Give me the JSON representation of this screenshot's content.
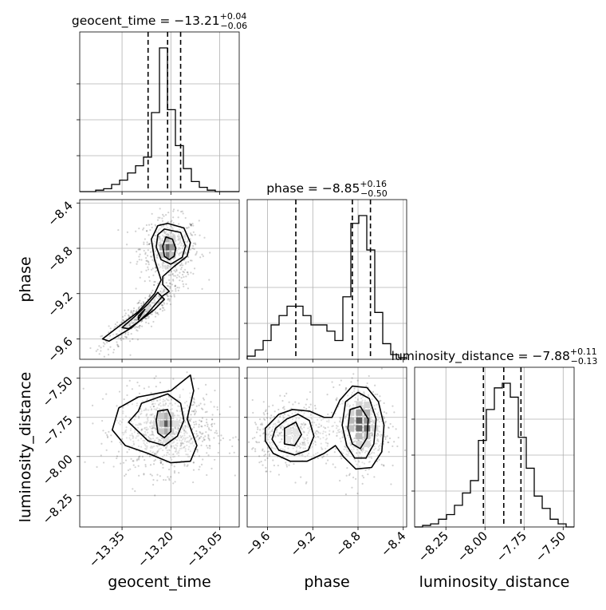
{
  "chart_data": {
    "type": "corner",
    "parameters": [
      "geocent_time",
      "phase",
      "luminosity_distance"
    ],
    "axis_labels": [
      "geocent_time",
      "phase",
      "luminosity_distance"
    ],
    "titles": [
      {
        "param": "geocent_time",
        "prefix": "geocent_time = −13.21",
        "plus": "+0.04",
        "minus": "−0.06"
      },
      {
        "param": "phase",
        "prefix": "phase = −8.85",
        "plus": "+0.16",
        "minus": "−0.50"
      },
      {
        "param": "luminosity_distance",
        "prefix": "luminosity_distance = −7.88",
        "plus": "+0.11",
        "minus": "−0.13"
      }
    ],
    "ranges": {
      "geocent_time": [
        -13.48,
        -12.99
      ],
      "phase": [
        -9.78,
        -8.37
      ],
      "luminosity_distance": [
        -8.45,
        -7.43
      ]
    },
    "ticks": {
      "geocent_time": {
        "values": [
          -13.35,
          -13.2,
          -13.05
        ],
        "labels": [
          "−13.35",
          "−13.20",
          "−13.05"
        ]
      },
      "phase": {
        "values": [
          -9.6,
          -9.2,
          -8.8,
          -8.4
        ],
        "labels": [
          "−9.6",
          "−9.2",
          "−8.8",
          "−8.4"
        ]
      },
      "luminosity_distance": {
        "values": [
          -8.25,
          -8.0,
          -7.75,
          -7.5
        ],
        "labels": [
          "−8.25",
          "−8.00",
          "−7.75",
          "−7.50"
        ]
      }
    },
    "quantiles": {
      "geocent_time": [
        -13.27,
        -13.21,
        -13.17
      ],
      "phase": [
        -9.35,
        -8.85,
        -8.69
      ],
      "luminosity_distance": [
        -8.01,
        -7.88,
        -7.77
      ]
    },
    "histograms": {
      "geocent_time": {
        "edges": [
          -13.48,
          -13.4555,
          -13.431,
          -13.4065,
          -13.382,
          -13.3575,
          -13.333,
          -13.3085,
          -13.284,
          -13.2595,
          -13.235,
          -13.2105,
          -13.186,
          -13.1615,
          -13.137,
          -13.1125,
          -13.088,
          -13.0635,
          -13.039,
          -13.0145,
          -12.99
        ],
        "counts": [
          0,
          0,
          1,
          2,
          5,
          8,
          13,
          18,
          24,
          55,
          100,
          57,
          32,
          16,
          7,
          3,
          1,
          0,
          0,
          0
        ]
      },
      "phase": {
        "edges": [
          -9.78,
          -9.7095,
          -9.639,
          -9.5685,
          -9.498,
          -9.4275,
          -9.357,
          -9.2865,
          -9.216,
          -9.1455,
          -9.075,
          -9.0045,
          -8.934,
          -8.8635,
          -8.793,
          -8.7225,
          -8.652,
          -8.5815,
          -8.511,
          -8.4405,
          -8.37
        ],
        "counts": [
          2,
          6,
          12,
          22,
          28,
          34,
          34,
          28,
          22,
          22,
          18,
          12,
          40,
          87,
          92,
          70,
          30,
          10,
          3,
          1
        ]
      },
      "luminosity_distance": {
        "edges": [
          -8.45,
          -8.399,
          -8.348,
          -8.297,
          -8.246,
          -8.195,
          -8.144,
          -8.093,
          -8.042,
          -7.991,
          -7.94,
          -7.889,
          -7.838,
          -7.787,
          -7.736,
          -7.685,
          -7.634,
          -7.583,
          -7.532,
          -7.481,
          -7.43
        ],
        "counts": [
          0,
          1,
          2,
          5,
          8,
          14,
          22,
          30,
          56,
          76,
          90,
          93,
          84,
          58,
          38,
          20,
          12,
          5,
          2,
          0
        ]
      }
    },
    "contours": {
      "phase_vs_geocent_time": {
        "inner": [
          [
            [
              -13.215,
              -8.7
            ],
            [
              -13.195,
              -8.72
            ],
            [
              -13.185,
              -8.8
            ],
            [
              -13.19,
              -8.87
            ],
            [
              -13.205,
              -8.9
            ],
            [
              -13.22,
              -8.87
            ],
            [
              -13.225,
              -8.78
            ]
          ],
          [
            [
              -13.3,
              -9.4
            ],
            [
              -13.28,
              -9.34
            ],
            [
              -13.29,
              -9.38
            ],
            [
              -13.3,
              -9.43
            ]
          ]
        ],
        "middle": [
          [
            [
              -13.22,
              -8.63
            ],
            [
              -13.17,
              -8.66
            ],
            [
              -13.155,
              -8.78
            ],
            [
              -13.165,
              -8.88
            ],
            [
              -13.2,
              -8.94
            ],
            [
              -13.23,
              -8.9
            ],
            [
              -13.245,
              -8.79
            ],
            [
              -13.24,
              -8.68
            ]
          ],
          [
            [
              -13.24,
              -9.19
            ],
            [
              -13.27,
              -9.29
            ],
            [
              -13.31,
              -9.4
            ],
            [
              -13.35,
              -9.5
            ],
            [
              -13.33,
              -9.51
            ],
            [
              -13.3,
              -9.45
            ],
            [
              -13.25,
              -9.34
            ],
            [
              -13.22,
              -9.25
            ]
          ]
        ],
        "outer": [
          [
            [
              -13.24,
              -8.6
            ],
            [
              -13.21,
              -8.58
            ],
            [
              -13.16,
              -8.62
            ],
            [
              -13.14,
              -8.75
            ],
            [
              -13.15,
              -8.87
            ],
            [
              -13.19,
              -8.96
            ],
            [
              -13.225,
              -9.05
            ],
            [
              -13.225,
              -9.12
            ],
            [
              -13.205,
              -9.18
            ],
            [
              -13.225,
              -9.22
            ],
            [
              -13.27,
              -9.37
            ],
            [
              -13.32,
              -9.5
            ],
            [
              -13.39,
              -9.62
            ],
            [
              -13.41,
              -9.6
            ],
            [
              -13.36,
              -9.49
            ],
            [
              -13.3,
              -9.36
            ],
            [
              -13.25,
              -9.2
            ],
            [
              -13.23,
              -9.08
            ],
            [
              -13.25,
              -8.9
            ],
            [
              -13.26,
              -8.72
            ]
          ]
        ]
      },
      "luminosity_distance_vs_geocent_time": {
        "inner": [
          [
            [
              -13.24,
              -7.71
            ],
            [
              -13.21,
              -7.7
            ],
            [
              -13.2,
              -7.75
            ],
            [
              -13.2,
              -7.84
            ],
            [
              -13.22,
              -7.88
            ],
            [
              -13.24,
              -7.85
            ],
            [
              -13.245,
              -7.77
            ]
          ]
        ],
        "middle": [
          [
            [
              -13.29,
              -7.66
            ],
            [
              -13.21,
              -7.6
            ],
            [
              -13.17,
              -7.66
            ],
            [
              -13.16,
              -7.77
            ],
            [
              -13.18,
              -7.87
            ],
            [
              -13.22,
              -7.93
            ],
            [
              -13.27,
              -7.9
            ],
            [
              -13.3,
              -7.84
            ],
            [
              -13.33,
              -7.78
            ],
            [
              -13.3,
              -7.71
            ]
          ]
        ],
        "outer": [
          [
            [
              -13.36,
              -7.69
            ],
            [
              -13.3,
              -7.62
            ],
            [
              -13.2,
              -7.58
            ],
            [
              -13.14,
              -7.48
            ],
            [
              -13.13,
              -7.58
            ],
            [
              -13.15,
              -7.76
            ],
            [
              -13.12,
              -7.93
            ],
            [
              -13.14,
              -8.03
            ],
            [
              -13.2,
              -8.04
            ],
            [
              -13.27,
              -7.98
            ],
            [
              -13.34,
              -7.93
            ],
            [
              -13.38,
              -7.83
            ]
          ]
        ]
      },
      "luminosity_distance_vs_phase": {
        "inner": [
          [
            [
              -9.45,
              -7.82
            ],
            [
              -9.35,
              -7.78
            ],
            [
              -9.3,
              -7.86
            ],
            [
              -9.36,
              -7.93
            ],
            [
              -9.45,
              -7.92
            ]
          ],
          [
            [
              -8.87,
              -7.7
            ],
            [
              -8.78,
              -7.68
            ],
            [
              -8.71,
              -7.76
            ],
            [
              -8.72,
              -7.88
            ],
            [
              -8.78,
              -7.95
            ],
            [
              -8.85,
              -7.92
            ],
            [
              -8.89,
              -7.82
            ]
          ]
        ],
        "middle": [
          [
            [
              -9.53,
              -7.82
            ],
            [
              -9.43,
              -7.76
            ],
            [
              -9.33,
              -7.73
            ],
            [
              -9.23,
              -7.77
            ],
            [
              -9.19,
              -7.87
            ],
            [
              -9.24,
              -7.96
            ],
            [
              -9.36,
              -7.99
            ],
            [
              -9.5,
              -7.96
            ],
            [
              -9.56,
              -7.89
            ]
          ],
          [
            [
              -8.91,
              -7.65
            ],
            [
              -8.8,
              -7.59
            ],
            [
              -8.7,
              -7.63
            ],
            [
              -8.64,
              -7.76
            ],
            [
              -8.66,
              -7.92
            ],
            [
              -8.73,
              -8.01
            ],
            [
              -8.83,
              -8.01
            ],
            [
              -8.9,
              -7.93
            ],
            [
              -8.94,
              -7.8
            ]
          ]
        ],
        "outer": [
          [
            [
              -9.62,
              -7.82
            ],
            [
              -9.5,
              -7.73
            ],
            [
              -9.38,
              -7.7
            ],
            [
              -9.23,
              -7.71
            ],
            [
              -9.1,
              -7.75
            ],
            [
              -9.03,
              -7.75
            ],
            [
              -8.96,
              -7.64
            ],
            [
              -8.85,
              -7.55
            ],
            [
              -8.72,
              -7.56
            ],
            [
              -8.62,
              -7.65
            ],
            [
              -8.57,
              -7.8
            ],
            [
              -8.59,
              -7.97
            ],
            [
              -8.68,
              -8.07
            ],
            [
              -8.82,
              -8.08
            ],
            [
              -8.93,
              -8.0
            ],
            [
              -9.0,
              -7.93
            ],
            [
              -9.1,
              -7.98
            ],
            [
              -9.25,
              -8.03
            ],
            [
              -9.4,
              -8.03
            ],
            [
              -9.55,
              -7.98
            ],
            [
              -9.62,
              -7.9
            ]
          ]
        ]
      }
    },
    "density_cells": {
      "phase_vs_geocent_time": [
        {
          "x": -13.21,
          "y": -8.79,
          "level": 1.0
        },
        {
          "x": -13.21,
          "y": -8.86,
          "level": 0.75
        },
        {
          "x": -13.195,
          "y": -8.79,
          "level": 0.6
        },
        {
          "x": -13.225,
          "y": -8.79,
          "level": 0.5
        },
        {
          "x": -13.21,
          "y": -8.72,
          "level": 0.45
        },
        {
          "x": -13.195,
          "y": -8.86,
          "level": 0.35
        },
        {
          "x": -13.225,
          "y": -8.86,
          "level": 0.35
        },
        {
          "x": -13.195,
          "y": -8.72,
          "level": 0.25
        },
        {
          "x": -13.29,
          "y": -9.38,
          "level": 0.3
        },
        {
          "x": -13.275,
          "y": -9.32,
          "level": 0.2
        }
      ],
      "luminosity_distance_vs_geocent_time": [
        {
          "x": -13.215,
          "y": -7.79,
          "level": 1.0
        },
        {
          "x": -13.215,
          "y": -7.74,
          "level": 0.45
        },
        {
          "x": -13.215,
          "y": -7.84,
          "level": 0.5
        },
        {
          "x": -13.23,
          "y": -7.79,
          "level": 0.4
        },
        {
          "x": -13.2,
          "y": -7.79,
          "level": 0.35
        },
        {
          "x": -13.23,
          "y": -7.74,
          "level": 0.3
        },
        {
          "x": -13.23,
          "y": -7.84,
          "level": 0.3
        },
        {
          "x": -13.2,
          "y": -7.74,
          "level": 0.25
        },
        {
          "x": -13.2,
          "y": -7.84,
          "level": 0.25
        },
        {
          "x": -13.245,
          "y": -7.79,
          "level": 0.18
        },
        {
          "x": -13.185,
          "y": -7.79,
          "level": 0.15
        },
        {
          "x": -13.215,
          "y": -7.89,
          "level": 0.15
        }
      ],
      "luminosity_distance_vs_phase": [
        {
          "x": -8.79,
          "y": -7.77,
          "level": 1.0
        },
        {
          "x": -8.79,
          "y": -7.82,
          "level": 0.9
        },
        {
          "x": -8.72,
          "y": -7.82,
          "level": 0.85
        },
        {
          "x": -8.79,
          "y": -7.72,
          "level": 0.6
        },
        {
          "x": -8.72,
          "y": -7.77,
          "level": 0.6
        },
        {
          "x": -8.72,
          "y": -7.72,
          "level": 0.45
        },
        {
          "x": -8.86,
          "y": -7.77,
          "level": 0.4
        },
        {
          "x": -8.86,
          "y": -7.82,
          "level": 0.35
        },
        {
          "x": -8.79,
          "y": -7.87,
          "level": 0.4
        },
        {
          "x": -8.72,
          "y": -7.87,
          "level": 0.35
        },
        {
          "x": -8.86,
          "y": -7.72,
          "level": 0.25
        },
        {
          "x": -8.72,
          "y": -7.67,
          "level": 0.22
        },
        {
          "x": -8.79,
          "y": -7.67,
          "level": 0.22
        },
        {
          "x": -8.65,
          "y": -7.82,
          "level": 0.2
        },
        {
          "x": -8.79,
          "y": -7.92,
          "level": 0.2
        },
        {
          "x": -8.72,
          "y": -7.92,
          "level": 0.18
        },
        {
          "x": -9.42,
          "y": -7.84,
          "level": 0.12
        },
        {
          "x": -9.35,
          "y": -7.84,
          "level": 0.12
        },
        {
          "x": -9.35,
          "y": -7.89,
          "level": 0.1
        },
        {
          "x": -9.42,
          "y": -7.89,
          "level": 0.1
        }
      ]
    },
    "scatter_spread": {
      "phase_vs_geocent_time": [
        {
          "cx": -13.205,
          "cy": -8.8,
          "sx": 0.045,
          "sy": 0.14,
          "n": 520,
          "rho": 0.0
        },
        {
          "cx": -13.29,
          "cy": -9.38,
          "sx": 0.06,
          "sy": 0.16,
          "n": 420,
          "rho": 0.9
        }
      ],
      "luminosity_distance_vs_geocent_time": [
        {
          "cx": -13.215,
          "cy": -7.84,
          "sx": 0.075,
          "sy": 0.13,
          "n": 900,
          "rho": 0.0
        }
      ],
      "luminosity_distance_vs_phase": [
        {
          "cx": -8.78,
          "cy": -7.82,
          "sx": 0.12,
          "sy": 0.14,
          "n": 560,
          "rho": 0.0
        },
        {
          "cx": -9.37,
          "cy": -7.86,
          "sx": 0.18,
          "sy": 0.1,
          "n": 460,
          "rho": 0.0
        }
      ]
    },
    "grid": true
  }
}
